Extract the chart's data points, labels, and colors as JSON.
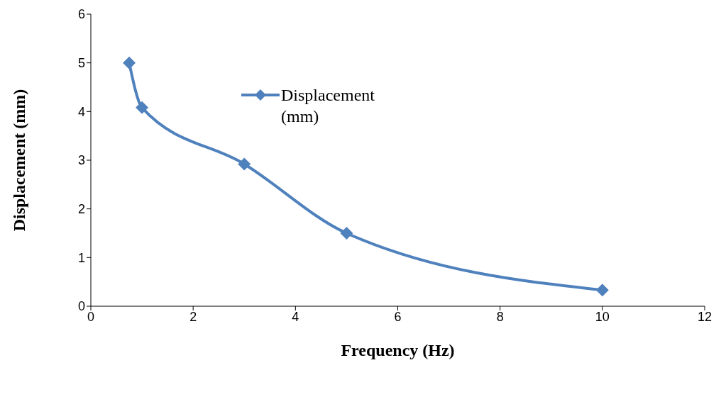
{
  "chart_data": {
    "type": "line",
    "xlabel": "Frequency (Hz)",
    "ylabel": "Displacement (mm)",
    "x": [
      0.75,
      1,
      3,
      5,
      10
    ],
    "series": [
      {
        "name": "Displacement (mm)",
        "color": "#4f81bd",
        "values": [
          5,
          4.08,
          2.92,
          1.5,
          0.33
        ]
      }
    ],
    "xlim": [
      0,
      12
    ],
    "xticks": [
      0,
      2,
      4,
      6,
      8,
      10,
      12
    ],
    "ylim": [
      0,
      6
    ],
    "yticks": [
      0,
      1,
      2,
      3,
      4,
      5,
      6
    ],
    "grid": false,
    "legend": "top",
    "marker": "diamond",
    "line_style": "solid"
  }
}
